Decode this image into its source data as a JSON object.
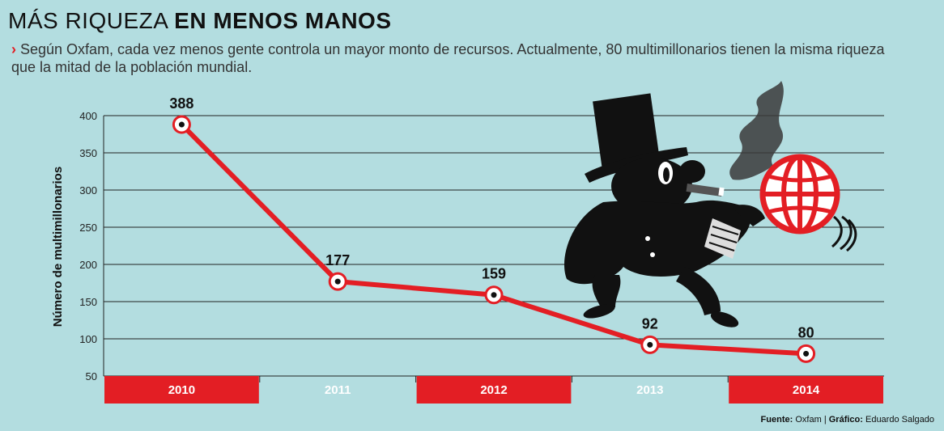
{
  "header": {
    "title_light": "MÁS RIQUEZA",
    "title_bold": "EN MENOS MANOS",
    "subtitle_marker": "›",
    "subtitle": "Según Oxfam, cada vez menos gente controla un mayor monto de recursos. Actualmente, 80 multimillonarios tienen la misma riqueza que la mitad de la población mundial."
  },
  "footer": {
    "source_label": "Fuente:",
    "source": "Oxfam",
    "separator": "|",
    "credit_label": "Gráfico:",
    "credit": "Eduardo Salgado"
  },
  "colors": {
    "background": "#b3dde0",
    "accent": "#e31e24",
    "ink": "#111111"
  },
  "illustration": {
    "description_icon": "rich-man-with-top-hat-and-cigar-carrying-globe-icon"
  },
  "chart_data": {
    "type": "line",
    "title": "MÁS RIQUEZA EN MENOS MANOS",
    "xlabel": "",
    "ylabel": "Número de multimillonarios",
    "categories": [
      "2010",
      "2011",
      "2012",
      "2013",
      "2014"
    ],
    "series": [
      {
        "values": [
          388,
          177,
          159,
          92,
          80
        ]
      }
    ],
    "data_labels": [
      "388",
      "177",
      "159",
      "92",
      "80"
    ],
    "yticks": [
      50,
      100,
      150,
      200,
      250,
      300,
      350,
      400
    ],
    "ytick_labels": [
      "50",
      "100",
      "150",
      "200",
      "250",
      "300",
      "350",
      "400"
    ],
    "ylim": [
      50,
      400
    ],
    "grid": true,
    "legend": "none",
    "line_color": "#e31e24"
  }
}
